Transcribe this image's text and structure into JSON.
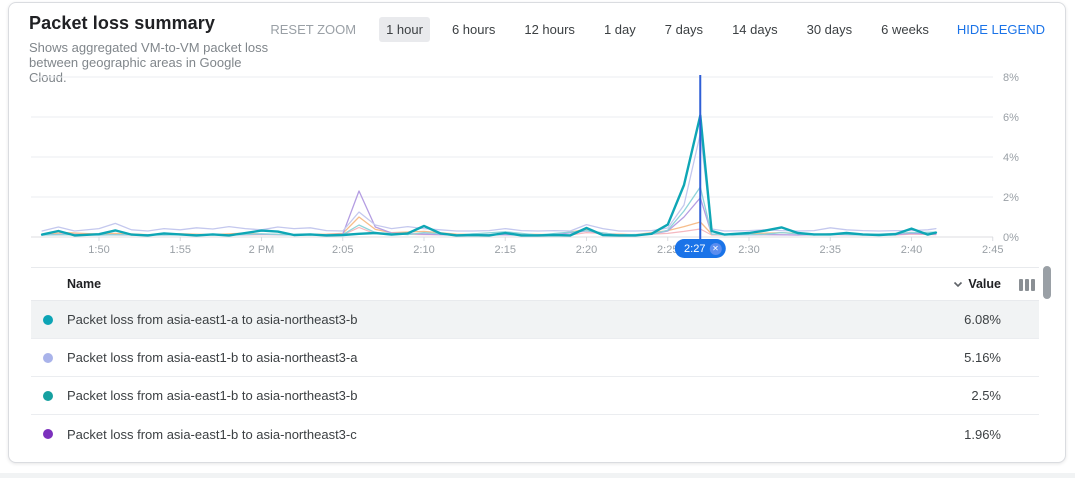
{
  "header": {
    "title": "Packet loss summary",
    "subtitle": "Shows aggregated VM-to-VM packet loss between geographic areas in Google Cloud.",
    "reset_zoom_label": "RESET ZOOM",
    "ranges": [
      {
        "label": "1 hour",
        "selected": true
      },
      {
        "label": "6 hours",
        "selected": false
      },
      {
        "label": "12 hours",
        "selected": false
      },
      {
        "label": "1 day",
        "selected": false
      },
      {
        "label": "7 days",
        "selected": false
      },
      {
        "label": "14 days",
        "selected": false
      },
      {
        "label": "30 days",
        "selected": false
      },
      {
        "label": "6 weeks",
        "selected": false
      }
    ],
    "hide_legend_label": "HIDE LEGEND"
  },
  "chart_data": {
    "type": "line",
    "unit": "%",
    "ylim": [
      0,
      8
    ],
    "grid": true,
    "y_axis": {
      "side": "right",
      "ticks": [
        {
          "value": 0,
          "label": "0%"
        },
        {
          "value": 2,
          "label": "2%"
        },
        {
          "value": 4,
          "label": "4%"
        },
        {
          "value": 6,
          "label": "6%"
        },
        {
          "value": 8,
          "label": "8%"
        }
      ]
    },
    "x_axis": {
      "ticks": [
        {
          "t": 5,
          "label": "1:50"
        },
        {
          "t": 10,
          "label": "1:55"
        },
        {
          "t": 15,
          "label": "2 PM"
        },
        {
          "t": 20,
          "label": "2:05"
        },
        {
          "t": 25,
          "label": "2:10"
        },
        {
          "t": 30,
          "label": "2:15"
        },
        {
          "t": 35,
          "label": "2:20"
        },
        {
          "t": 40,
          "label": "2:25"
        },
        {
          "t": 45,
          "label": "2:30"
        },
        {
          "t": 50,
          "label": "2:35"
        },
        {
          "t": 55,
          "label": "2:40"
        },
        {
          "t": 60,
          "label": "2:45"
        }
      ]
    },
    "selected_time": {
      "t": 42,
      "label": "2:27",
      "pill_color": "#1a73e8",
      "line_color": "#2f5fd6"
    },
    "series": [
      {
        "name": "Packet loss from asia-east1-a to asia-northeast3-b",
        "color": "#0ea6b5",
        "width": 2.4,
        "points": [
          [
            1.5,
            0.12
          ],
          [
            2.5,
            0.3
          ],
          [
            3.5,
            0.08
          ],
          [
            5,
            0.14
          ],
          [
            6,
            0.33
          ],
          [
            7,
            0.12
          ],
          [
            8,
            0.08
          ],
          [
            9,
            0.18
          ],
          [
            10,
            0.13
          ],
          [
            11,
            0.08
          ],
          [
            12,
            0.13
          ],
          [
            13,
            0.08
          ],
          [
            14,
            0.2
          ],
          [
            15,
            0.32
          ],
          [
            16,
            0.27
          ],
          [
            17,
            0.1
          ],
          [
            18,
            0.13
          ],
          [
            19,
            0.08
          ],
          [
            20,
            0.1
          ],
          [
            21,
            0.16
          ],
          [
            22,
            0.2
          ],
          [
            23,
            0.12
          ],
          [
            24,
            0.18
          ],
          [
            25,
            0.55
          ],
          [
            26,
            0.18
          ],
          [
            27,
            0.08
          ],
          [
            28,
            0.1
          ],
          [
            29,
            0.08
          ],
          [
            30,
            0.2
          ],
          [
            31,
            0.08
          ],
          [
            32,
            0.08
          ],
          [
            33,
            0.1
          ],
          [
            34,
            0.08
          ],
          [
            35,
            0.45
          ],
          [
            36,
            0.1
          ],
          [
            37,
            0.08
          ],
          [
            38,
            0.08
          ],
          [
            39,
            0.16
          ],
          [
            40,
            0.62
          ],
          [
            41,
            2.6
          ],
          [
            42,
            6.08
          ],
          [
            42.7,
            0.3
          ],
          [
            43.5,
            0.12
          ],
          [
            45,
            0.2
          ],
          [
            46,
            0.32
          ],
          [
            47,
            0.48
          ],
          [
            48,
            0.2
          ],
          [
            49,
            0.13
          ],
          [
            50,
            0.13
          ],
          [
            51,
            0.2
          ],
          [
            52,
            0.13
          ],
          [
            53,
            0.1
          ],
          [
            54,
            0.14
          ],
          [
            55,
            0.42
          ],
          [
            56,
            0.12
          ],
          [
            56.5,
            0.22
          ]
        ]
      },
      {
        "name": "Packet loss from asia-east1-b to asia-northeast3-a",
        "color": "#c4c8ee",
        "width": 1.3,
        "points": [
          [
            1.5,
            0.3
          ],
          [
            2.5,
            0.5
          ],
          [
            3.5,
            0.3
          ],
          [
            5,
            0.42
          ],
          [
            6,
            0.68
          ],
          [
            7,
            0.36
          ],
          [
            8,
            0.3
          ],
          [
            9,
            0.42
          ],
          [
            10,
            0.36
          ],
          [
            11,
            0.46
          ],
          [
            12,
            0.4
          ],
          [
            13,
            0.52
          ],
          [
            14,
            0.42
          ],
          [
            15,
            0.36
          ],
          [
            16,
            0.5
          ],
          [
            17,
            0.42
          ],
          [
            18,
            0.46
          ],
          [
            19,
            0.32
          ],
          [
            20,
            0.3
          ],
          [
            21,
            1.25
          ],
          [
            22,
            0.6
          ],
          [
            23,
            0.42
          ],
          [
            24,
            0.52
          ],
          [
            25,
            0.42
          ],
          [
            26,
            0.36
          ],
          [
            27,
            0.3
          ],
          [
            28,
            0.3
          ],
          [
            29,
            0.32
          ],
          [
            30,
            0.42
          ],
          [
            31,
            0.32
          ],
          [
            32,
            0.3
          ],
          [
            33,
            0.32
          ],
          [
            34,
            0.3
          ],
          [
            35,
            0.62
          ],
          [
            36,
            0.42
          ],
          [
            37,
            0.3
          ],
          [
            38,
            0.3
          ],
          [
            39,
            0.32
          ],
          [
            40,
            0.45
          ],
          [
            41,
            1.6
          ],
          [
            42,
            5.16
          ],
          [
            42.7,
            0.4
          ],
          [
            43.5,
            0.3
          ],
          [
            45,
            0.32
          ],
          [
            46,
            0.36
          ],
          [
            47,
            0.32
          ],
          [
            48,
            0.3
          ],
          [
            49,
            0.32
          ],
          [
            50,
            0.46
          ],
          [
            51,
            0.36
          ],
          [
            52,
            0.32
          ],
          [
            53,
            0.3
          ],
          [
            54,
            0.32
          ],
          [
            55,
            0.32
          ],
          [
            56,
            0.36
          ],
          [
            56.5,
            0.42
          ]
        ]
      },
      {
        "name": "Packet loss from asia-east1-b to asia-northeast3-b",
        "color": "#8fd3d9",
        "width": 1.3,
        "points": [
          [
            1.5,
            0.1
          ],
          [
            3,
            0.12
          ],
          [
            5,
            0.1
          ],
          [
            7,
            0.12
          ],
          [
            9,
            0.1
          ],
          [
            11,
            0.12
          ],
          [
            13,
            0.1
          ],
          [
            15,
            0.16
          ],
          [
            17,
            0.1
          ],
          [
            19,
            0.1
          ],
          [
            20,
            0.12
          ],
          [
            21,
            0.6
          ],
          [
            22,
            0.22
          ],
          [
            24,
            0.12
          ],
          [
            25,
            0.22
          ],
          [
            27,
            0.1
          ],
          [
            30,
            0.26
          ],
          [
            32,
            0.1
          ],
          [
            35,
            0.32
          ],
          [
            37,
            0.1
          ],
          [
            39,
            0.14
          ],
          [
            40,
            0.34
          ],
          [
            41,
            1.3
          ],
          [
            42,
            2.5
          ],
          [
            42.7,
            0.14
          ],
          [
            44,
            0.1
          ],
          [
            46,
            0.14
          ],
          [
            47,
            0.22
          ],
          [
            49,
            0.1
          ],
          [
            50,
            0.16
          ],
          [
            52,
            0.1
          ],
          [
            55,
            0.22
          ],
          [
            56.5,
            0.24
          ]
        ]
      },
      {
        "name": "Packet loss from asia-east1-b to asia-northeast3-c",
        "color": "#b49de2",
        "width": 1.3,
        "points": [
          [
            1.5,
            0.1
          ],
          [
            3,
            0.14
          ],
          [
            5,
            0.1
          ],
          [
            7,
            0.12
          ],
          [
            9,
            0.1
          ],
          [
            11,
            0.12
          ],
          [
            13,
            0.1
          ],
          [
            15,
            0.14
          ],
          [
            17,
            0.1
          ],
          [
            19,
            0.12
          ],
          [
            20,
            0.14
          ],
          [
            21,
            2.3
          ],
          [
            22,
            0.5
          ],
          [
            23,
            0.2
          ],
          [
            25,
            0.14
          ],
          [
            27,
            0.1
          ],
          [
            29,
            0.12
          ],
          [
            31,
            0.1
          ],
          [
            33,
            0.12
          ],
          [
            35,
            0.3
          ],
          [
            37,
            0.1
          ],
          [
            39,
            0.14
          ],
          [
            40,
            0.3
          ],
          [
            41,
            1.0
          ],
          [
            42,
            1.96
          ],
          [
            42.7,
            0.15
          ],
          [
            44,
            0.1
          ],
          [
            46,
            0.12
          ],
          [
            48,
            0.1
          ],
          [
            50,
            0.14
          ],
          [
            52,
            0.1
          ],
          [
            54,
            0.12
          ],
          [
            55,
            0.18
          ],
          [
            56.5,
            0.14
          ]
        ]
      },
      {
        "name": "",
        "color": "#f6bd8b",
        "width": 1.3,
        "points": [
          [
            1.5,
            0.14
          ],
          [
            3,
            0.22
          ],
          [
            5,
            0.14
          ],
          [
            6,
            0.18
          ],
          [
            8,
            0.12
          ],
          [
            10,
            0.16
          ],
          [
            12,
            0.12
          ],
          [
            14,
            0.2
          ],
          [
            15,
            0.14
          ],
          [
            17,
            0.12
          ],
          [
            19,
            0.14
          ],
          [
            20,
            0.18
          ],
          [
            21,
            1.0
          ],
          [
            22,
            0.38
          ],
          [
            23,
            0.22
          ],
          [
            25,
            0.28
          ],
          [
            27,
            0.14
          ],
          [
            29,
            0.12
          ],
          [
            31,
            0.14
          ],
          [
            33,
            0.12
          ],
          [
            35,
            0.38
          ],
          [
            36,
            0.16
          ],
          [
            38,
            0.12
          ],
          [
            40,
            0.32
          ],
          [
            41,
            0.52
          ],
          [
            42,
            0.75
          ],
          [
            42.7,
            0.15
          ],
          [
            44,
            0.14
          ],
          [
            45,
            0.16
          ],
          [
            47,
            0.22
          ],
          [
            49,
            0.14
          ],
          [
            51,
            0.16
          ],
          [
            53,
            0.12
          ],
          [
            55,
            0.22
          ],
          [
            56,
            0.13
          ],
          [
            56.5,
            0.16
          ]
        ]
      },
      {
        "name": "",
        "color": "#f5b8bf",
        "width": 1.2,
        "points": [
          [
            1.5,
            0.1
          ],
          [
            4,
            0.12
          ],
          [
            7,
            0.1
          ],
          [
            10,
            0.12
          ],
          [
            13,
            0.1
          ],
          [
            16,
            0.12
          ],
          [
            19,
            0.1
          ],
          [
            20,
            0.1
          ],
          [
            21,
            0.48
          ],
          [
            22,
            0.16
          ],
          [
            25,
            0.12
          ],
          [
            28,
            0.1
          ],
          [
            31,
            0.12
          ],
          [
            34,
            0.1
          ],
          [
            35,
            0.22
          ],
          [
            38,
            0.1
          ],
          [
            40,
            0.18
          ],
          [
            41,
            0.28
          ],
          [
            42,
            0.4
          ],
          [
            42.7,
            0.1
          ],
          [
            45,
            0.12
          ],
          [
            48,
            0.1
          ],
          [
            51,
            0.12
          ],
          [
            54,
            0.1
          ],
          [
            55,
            0.14
          ],
          [
            56.5,
            0.12
          ]
        ]
      }
    ]
  },
  "legend": {
    "columns": {
      "name": "Name",
      "value": "Value"
    },
    "rows": [
      {
        "color": "#0ca4b5",
        "name": "Packet loss from asia-east1-a to asia-northeast3-b",
        "value": "6.08%",
        "highlighted": true
      },
      {
        "color": "#a9b3ea",
        "name": "Packet loss from asia-east1-b to asia-northeast3-a",
        "value": "5.16%",
        "highlighted": false
      },
      {
        "color": "#16a0a0",
        "name": "Packet loss from asia-east1-b to asia-northeast3-b",
        "value": "2.5%",
        "highlighted": false
      },
      {
        "color": "#7c31bd",
        "name": "Packet loss from asia-east1-b to asia-northeast3-c",
        "value": "1.96%",
        "highlighted": false
      }
    ]
  }
}
